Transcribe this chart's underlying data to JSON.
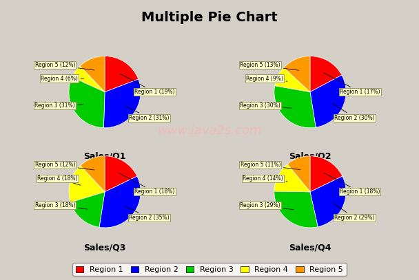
{
  "title": "Multiple Pie Chart",
  "window_title": "Multiple Pie Chart Demo 2",
  "watermark": "www.java2s.com",
  "background_color": "#d4d0c8",
  "chart_bg": "#ffffff",
  "pie_colors": [
    "#ff0000",
    "#0000ff",
    "#00cc00",
    "#ffff00",
    "#ff9900"
  ],
  "region_labels": [
    "Region 1",
    "Region 2",
    "Region 3",
    "Region 4",
    "Region 5"
  ],
  "charts": [
    {
      "title": "Sales/Q1",
      "values": [
        19,
        31,
        31,
        6,
        12
      ],
      "labels": [
        "Region 1 (19%)",
        "Region 2 (31%)",
        "Region 3 (31%)",
        "Region 4 (6%)",
        "Region 5 (12%)"
      ]
    },
    {
      "title": "Sales/Q2",
      "values": [
        17,
        30,
        30,
        9,
        13
      ],
      "labels": [
        "Region 1 (17%)",
        "Region 2 (30%)",
        "Region 3 (30%)",
        "Region 4 (9%)",
        "Region 5 (13%)"
      ]
    },
    {
      "title": "Sales/Q3",
      "values": [
        18,
        35,
        18,
        18,
        12
      ],
      "labels": [
        "Region 1 (18%)",
        "Region 2 (35%)",
        "Region 3 (18%)",
        "Region 4 (18%)",
        "Region 5 (12%)"
      ]
    },
    {
      "title": "Sales/Q4",
      "values": [
        18,
        29,
        29,
        14,
        11
      ],
      "labels": [
        "Region 1 (18%)",
        "Region 2 (29%)",
        "Region 3 (29%)",
        "Region 4 (14%)",
        "Region 5 (11%)"
      ]
    }
  ]
}
